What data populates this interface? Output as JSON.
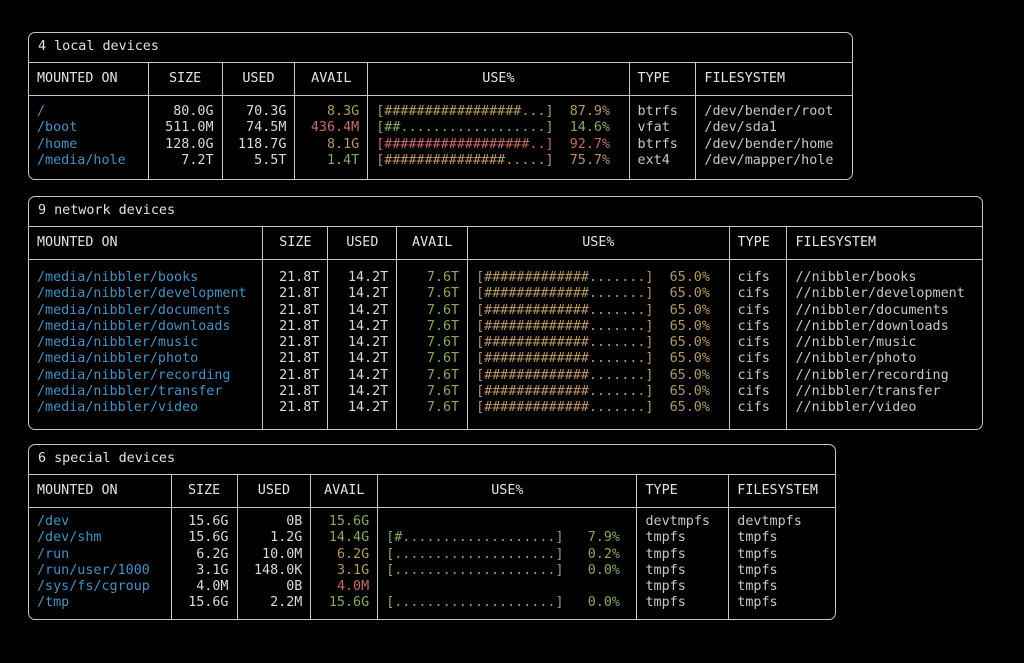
{
  "app": {
    "name": "duf disk usage terminal output"
  },
  "palette": {
    "background": "#000000",
    "border": "#c6c6c6",
    "text": "#d9d9d9",
    "heading": "#e3e3e3",
    "dim": "#c7c7c7",
    "blue": "#4691c3",
    "green": "#87aa5f",
    "yellow": "#b9965f",
    "red": "#c86969"
  },
  "tables": [
    {
      "title": "4 local devices",
      "columns": [
        {
          "label": "MOUNTED ON",
          "header_align": "left",
          "value_align": "left"
        },
        {
          "label": "SIZE",
          "header_align": "center",
          "value_align": "right"
        },
        {
          "label": "USED",
          "header_align": "center",
          "value_align": "right"
        },
        {
          "label": "AVAIL",
          "header_align": "center",
          "value_align": "right"
        },
        {
          "label": "USE%",
          "header_align": "center",
          "value_align": "left"
        },
        {
          "label": "TYPE",
          "header_align": "left",
          "value_align": "left"
        },
        {
          "label": "FILESYSTEM",
          "header_align": "left",
          "value_align": "left"
        }
      ],
      "rows": [
        {
          "mount": "/",
          "size": "80.0G",
          "used": "70.3G",
          "avail": "8.3G",
          "avail_color": "yellow",
          "bar": "[#################...]",
          "pct": "87.9%",
          "use_color": "yellow",
          "type": "btrfs",
          "filesystem": "/dev/bender/root"
        },
        {
          "mount": "/boot",
          "size": "511.0M",
          "used": "74.5M",
          "avail": "436.4M",
          "avail_color": "red",
          "bar": "[##..................]",
          "pct": "14.6%",
          "use_color": "green",
          "type": "vfat",
          "filesystem": "/dev/sda1"
        },
        {
          "mount": "/home",
          "size": "128.0G",
          "used": "118.7G",
          "avail": "8.1G",
          "avail_color": "yellow",
          "bar": "[##################..]",
          "pct": "92.7%",
          "use_color": "red",
          "type": "btrfs",
          "filesystem": "/dev/bender/home"
        },
        {
          "mount": "/media/hole",
          "size": "7.2T",
          "used": "5.5T",
          "avail": "1.4T",
          "avail_color": "green",
          "bar": "[###############.....]",
          "pct": "75.7%",
          "use_color": "yellow",
          "type": "ext4",
          "filesystem": "/dev/mapper/hole"
        }
      ]
    },
    {
      "title": "9 network devices",
      "columns": [
        {
          "label": "MOUNTED ON",
          "header_align": "left",
          "value_align": "left"
        },
        {
          "label": "SIZE",
          "header_align": "center",
          "value_align": "right"
        },
        {
          "label": "USED",
          "header_align": "center",
          "value_align": "right"
        },
        {
          "label": "AVAIL",
          "header_align": "center",
          "value_align": "right"
        },
        {
          "label": "USE%",
          "header_align": "center",
          "value_align": "left"
        },
        {
          "label": "TYPE",
          "header_align": "left",
          "value_align": "left"
        },
        {
          "label": "FILESYSTEM",
          "header_align": "left",
          "value_align": "left"
        }
      ],
      "rows": [
        {
          "mount": "/media/nibbler/books",
          "size": "21.8T",
          "used": "14.2T",
          "avail": "7.6T",
          "avail_color": "green",
          "bar": "[#############.......]",
          "pct": "65.0%",
          "use_color": "yellow",
          "type": "cifs",
          "filesystem": "//nibbler/books"
        },
        {
          "mount": "/media/nibbler/development",
          "size": "21.8T",
          "used": "14.2T",
          "avail": "7.6T",
          "avail_color": "green",
          "bar": "[#############.......]",
          "pct": "65.0%",
          "use_color": "yellow",
          "type": "cifs",
          "filesystem": "//nibbler/development"
        },
        {
          "mount": "/media/nibbler/documents",
          "size": "21.8T",
          "used": "14.2T",
          "avail": "7.6T",
          "avail_color": "green",
          "bar": "[#############.......]",
          "pct": "65.0%",
          "use_color": "yellow",
          "type": "cifs",
          "filesystem": "//nibbler/documents"
        },
        {
          "mount": "/media/nibbler/downloads",
          "size": "21.8T",
          "used": "14.2T",
          "avail": "7.6T",
          "avail_color": "green",
          "bar": "[#############.......]",
          "pct": "65.0%",
          "use_color": "yellow",
          "type": "cifs",
          "filesystem": "//nibbler/downloads"
        },
        {
          "mount": "/media/nibbler/music",
          "size": "21.8T",
          "used": "14.2T",
          "avail": "7.6T",
          "avail_color": "green",
          "bar": "[#############.......]",
          "pct": "65.0%",
          "use_color": "yellow",
          "type": "cifs",
          "filesystem": "//nibbler/music"
        },
        {
          "mount": "/media/nibbler/photo",
          "size": "21.8T",
          "used": "14.2T",
          "avail": "7.6T",
          "avail_color": "green",
          "bar": "[#############.......]",
          "pct": "65.0%",
          "use_color": "yellow",
          "type": "cifs",
          "filesystem": "//nibbler/photo"
        },
        {
          "mount": "/media/nibbler/recording",
          "size": "21.8T",
          "used": "14.2T",
          "avail": "7.6T",
          "avail_color": "green",
          "bar": "[#############.......]",
          "pct": "65.0%",
          "use_color": "yellow",
          "type": "cifs",
          "filesystem": "//nibbler/recording"
        },
        {
          "mount": "/media/nibbler/transfer",
          "size": "21.8T",
          "used": "14.2T",
          "avail": "7.6T",
          "avail_color": "green",
          "bar": "[#############.......]",
          "pct": "65.0%",
          "use_color": "yellow",
          "type": "cifs",
          "filesystem": "//nibbler/transfer"
        },
        {
          "mount": "/media/nibbler/video",
          "size": "21.8T",
          "used": "14.2T",
          "avail": "7.6T",
          "avail_color": "green",
          "bar": "[#############.......]",
          "pct": "65.0%",
          "use_color": "yellow",
          "type": "cifs",
          "filesystem": "//nibbler/video"
        }
      ]
    },
    {
      "title": "6 special devices",
      "columns": [
        {
          "label": "MOUNTED ON",
          "header_align": "left",
          "value_align": "left"
        },
        {
          "label": "SIZE",
          "header_align": "center",
          "value_align": "right"
        },
        {
          "label": "USED",
          "header_align": "center",
          "value_align": "right"
        },
        {
          "label": "AVAIL",
          "header_align": "center",
          "value_align": "right"
        },
        {
          "label": "USE%",
          "header_align": "center",
          "value_align": "left"
        },
        {
          "label": "TYPE",
          "header_align": "left",
          "value_align": "left"
        },
        {
          "label": "FILESYSTEM",
          "header_align": "left",
          "value_align": "left"
        }
      ],
      "rows": [
        {
          "mount": "/dev",
          "size": "15.6G",
          "used": "0B",
          "avail": "15.6G",
          "avail_color": "green",
          "bar": "",
          "pct": "",
          "use_color": "green",
          "type": "devtmpfs",
          "filesystem": "devtmpfs"
        },
        {
          "mount": "/dev/shm",
          "size": "15.6G",
          "used": "1.2G",
          "avail": "14.4G",
          "avail_color": "green",
          "bar": "[#...................]",
          "pct": "7.9%",
          "use_color": "green",
          "type": "tmpfs",
          "filesystem": "tmpfs"
        },
        {
          "mount": "/run",
          "size": "6.2G",
          "used": "10.0M",
          "avail": "6.2G",
          "avail_color": "yellow",
          "bar": "[....................]",
          "pct": "0.2%",
          "use_color": "green",
          "type": "tmpfs",
          "filesystem": "tmpfs"
        },
        {
          "mount": "/run/user/1000",
          "size": "3.1G",
          "used": "148.0K",
          "avail": "3.1G",
          "avail_color": "yellow",
          "bar": "[....................]",
          "pct": "0.0%",
          "use_color": "green",
          "type": "tmpfs",
          "filesystem": "tmpfs"
        },
        {
          "mount": "/sys/fs/cgroup",
          "size": "4.0M",
          "used": "0B",
          "avail": "4.0M",
          "avail_color": "red",
          "bar": "",
          "pct": "",
          "use_color": "green",
          "type": "tmpfs",
          "filesystem": "tmpfs"
        },
        {
          "mount": "/tmp",
          "size": "15.6G",
          "used": "2.2M",
          "avail": "15.6G",
          "avail_color": "green",
          "bar": "[....................]",
          "pct": "0.0%",
          "use_color": "green",
          "type": "tmpfs",
          "filesystem": "tmpfs"
        }
      ]
    }
  ]
}
